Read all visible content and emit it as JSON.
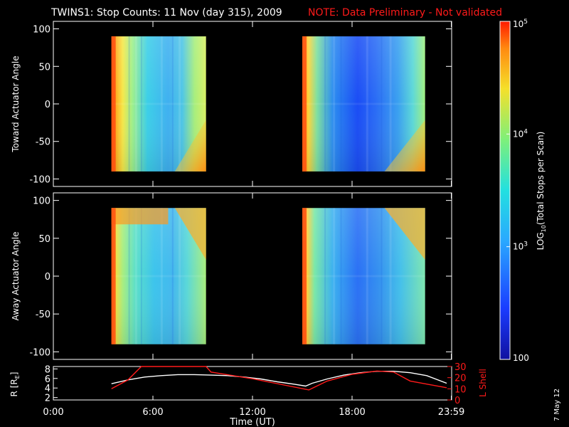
{
  "title": {
    "main": "TWINS1: Stop Counts: 11 Nov (day 315), 2009",
    "note": "NOTE: Data Preliminary - Not validated"
  },
  "colors": {
    "background": "#000000",
    "axes": "#ffffff",
    "note": "#ff1a1a",
    "r_line": "#ffffff",
    "l_shell_line": "#ff1a1a"
  },
  "chart_data": [
    {
      "type": "heatmap",
      "ylabel": "Toward Actuator Angle",
      "xlim_hours": [
        0,
        24
      ],
      "ylim": [
        -110,
        110
      ],
      "yticks": [
        -100,
        -50,
        0,
        50,
        100
      ],
      "data_y_range": [
        -90,
        90
      ],
      "blocks": [
        {
          "start_hours": 3.5,
          "end_hours": 9.2
        },
        {
          "start_hours": 15.0,
          "end_hours": 22.4
        }
      ]
    },
    {
      "type": "heatmap",
      "ylabel": "Away Actuator Angle",
      "xlim_hours": [
        0,
        24
      ],
      "ylim": [
        -110,
        110
      ],
      "yticks": [
        -100,
        -50,
        0,
        50,
        100
      ],
      "data_y_range": [
        -90,
        90
      ],
      "blocks": [
        {
          "start_hours": 3.5,
          "end_hours": 9.2
        },
        {
          "start_hours": 15.0,
          "end_hours": 22.4
        }
      ]
    },
    {
      "type": "line",
      "xlabel": "Time (UT)",
      "ylabel_left": "R [R",
      "ylabel_left_sub": "E",
      "ylabel_left_end": "]",
      "ylabel_right": "L Shell",
      "xlim_hours": [
        0,
        24
      ],
      "xticks_hours": [
        0,
        6,
        12,
        18,
        23.98
      ],
      "xtick_labels": [
        "0:00",
        "6:00",
        "12:00",
        "18:00",
        "23:59"
      ],
      "ylim_left": [
        1.5,
        8.5
      ],
      "yticks_left": [
        2,
        4,
        6,
        8
      ],
      "ylim_right": [
        0,
        30
      ],
      "yticks_right": [
        0,
        10,
        20,
        30
      ],
      "series": [
        {
          "axis": "left",
          "x_hours": [
            3.5,
            4.5,
            5.5,
            6.5,
            7.5,
            8.5,
            9.5,
            10.5,
            11.5,
            12.5,
            13.5,
            14.5,
            15.2,
            15.6,
            16.5,
            17.5,
            18.5,
            19.5,
            20.5,
            21.5,
            22.5,
            23.7
          ],
          "values": [
            4.9,
            5.7,
            6.3,
            6.6,
            6.8,
            6.8,
            6.7,
            6.6,
            6.3,
            5.9,
            5.3,
            4.8,
            4.4,
            5.0,
            5.9,
            6.7,
            7.2,
            7.5,
            7.5,
            7.2,
            6.6,
            5.0
          ]
        },
        {
          "axis": "right",
          "x_hours": [
            3.5,
            4.5,
            5.3,
            9.2,
            9.5,
            12.0,
            15.4,
            16.5,
            18.0,
            19.5,
            20.5,
            21.5,
            23.7
          ],
          "values": [
            10,
            18,
            30,
            30,
            25,
            19,
            9,
            17,
            23,
            26,
            25,
            17,
            11
          ]
        }
      ]
    }
  ],
  "colorbar": {
    "label_prefix": "LOG",
    "label_sub": "10",
    "label_rest": "(Total Stops per Scan)",
    "ticks": [
      {
        "base": "10",
        "exp": "5",
        "value": 100000
      },
      {
        "base": "10",
        "exp": "4",
        "value": 10000
      },
      {
        "base": "10",
        "exp": "3",
        "value": 1000
      },
      {
        "base": "100",
        "exp": "",
        "value": 100
      }
    ],
    "range": [
      100,
      100000
    ]
  },
  "datestamp": "7 May 12"
}
